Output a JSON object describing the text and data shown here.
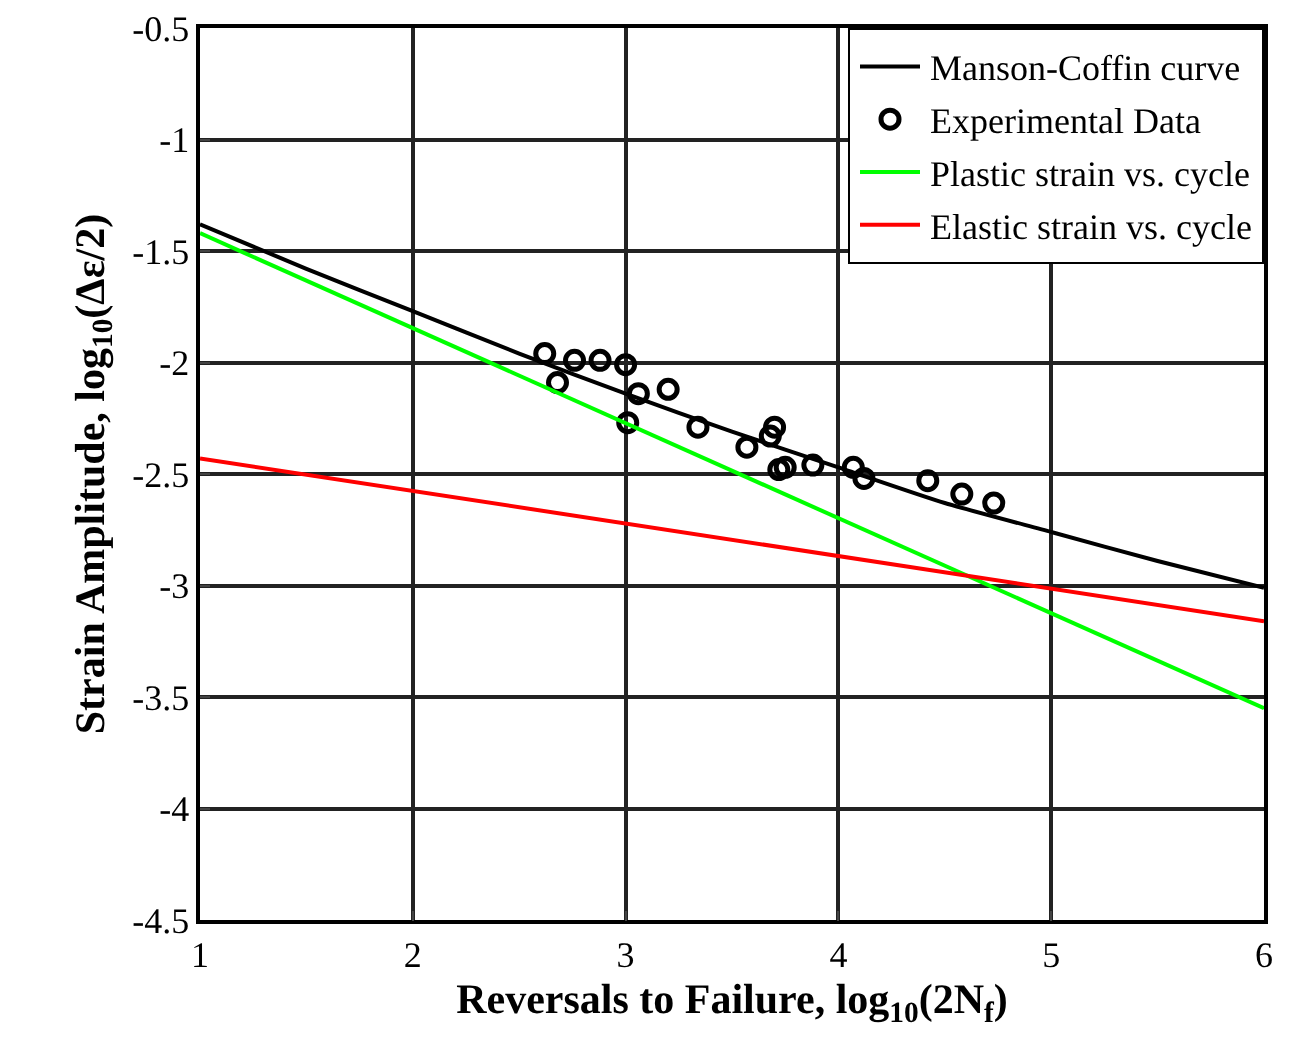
{
  "chart_data": {
    "type": "line",
    "xlabel": "Reversals to Failure, log$_{10}$(2N$_{f}$)",
    "ylabel": "Strain Amplitude, log$_{10}$(Δε/2)",
    "xlim": [
      1,
      6
    ],
    "xticks": [
      1,
      2,
      3,
      4,
      5,
      6
    ],
    "ylim": [
      -4.5,
      -0.5
    ],
    "yticks": [
      -4.5,
      -4,
      -3.5,
      -3,
      -2.5,
      -2,
      -1.5,
      -1,
      -0.5
    ],
    "grid": true,
    "legend": "top right",
    "series": [
      {
        "name": "Manson-Coffin curve",
        "color": "#000000",
        "marker": "none",
        "x": [
          1,
          1.5,
          2,
          2.5,
          3,
          3.5,
          4,
          4.5,
          5,
          5.5,
          6
        ],
        "values": [
          -1.38,
          -1.58,
          -1.77,
          -1.96,
          -2.14,
          -2.31,
          -2.47,
          -2.63,
          -2.76,
          -2.89,
          -3.01
        ]
      },
      {
        "name": "Experimental Data",
        "type": "scatter",
        "color": "#000000",
        "marker": "circle",
        "x": [
          2.62,
          2.68,
          2.76,
          2.88,
          3.0,
          3.01,
          3.06,
          3.2,
          3.34,
          3.57,
          3.68,
          3.7,
          3.72,
          3.75,
          3.88,
          4.07,
          4.12,
          4.42,
          4.58,
          4.73
        ],
        "values": [
          -1.96,
          -2.09,
          -1.99,
          -1.99,
          -2.01,
          -2.27,
          -2.14,
          -2.12,
          -2.29,
          -2.38,
          -2.33,
          -2.29,
          -2.48,
          -2.47,
          -2.46,
          -2.47,
          -2.52,
          -2.53,
          -2.59,
          -2.63
        ]
      },
      {
        "name": "Plastic strain vs. cycle",
        "color": "#00ff00",
        "marker": "none",
        "x": [
          1,
          6
        ],
        "values": [
          -1.42,
          -3.55
        ]
      },
      {
        "name": "Elastic strain vs. cycle",
        "color": "#ff0000",
        "marker": "none",
        "x": [
          1,
          6
        ],
        "values": [
          -2.43,
          -3.16
        ]
      }
    ]
  }
}
